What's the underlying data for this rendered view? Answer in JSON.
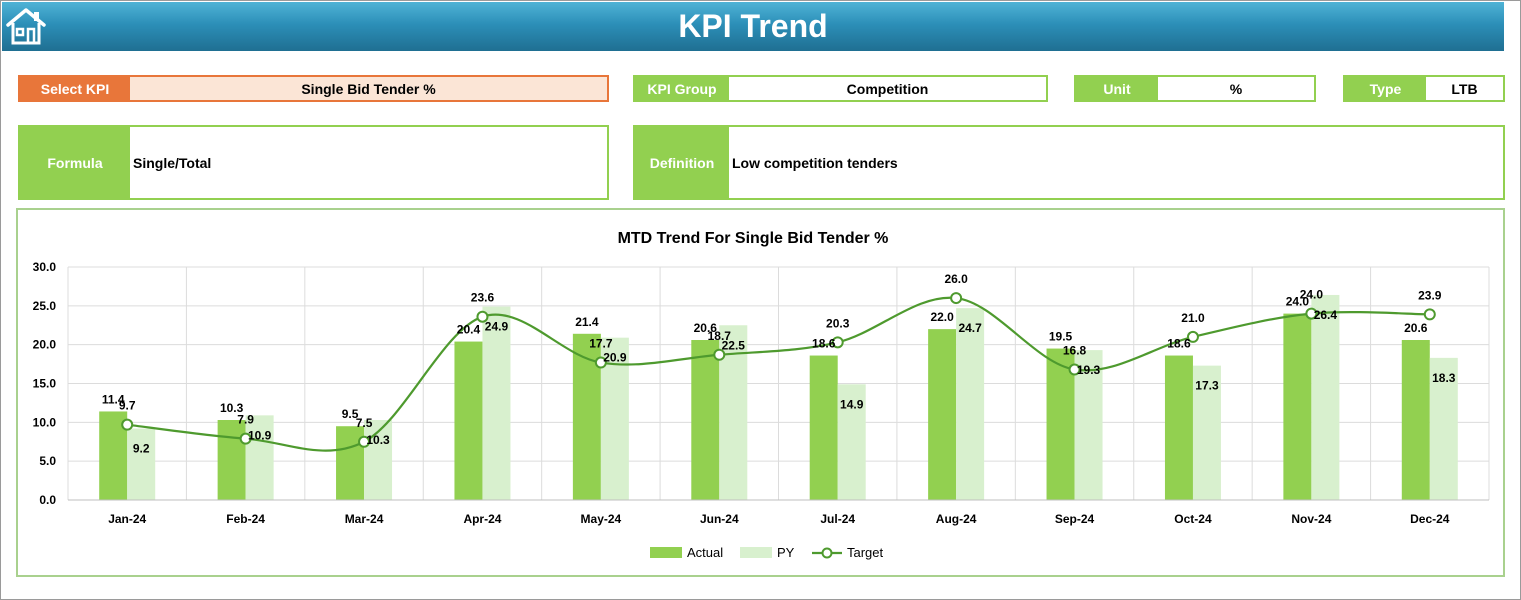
{
  "header": {
    "title": "KPI Trend"
  },
  "fields": {
    "select_kpi": {
      "label": "Select KPI",
      "value": "Single Bid Tender %"
    },
    "kpi_group": {
      "label": "KPI Group",
      "value": "Competition"
    },
    "unit": {
      "label": "Unit",
      "value": "%"
    },
    "type": {
      "label": "Type",
      "value": "LTB"
    },
    "formula": {
      "label": "Formula",
      "value": "Single/Total"
    },
    "definition": {
      "label": "Definition",
      "value": "Low competition tenders"
    }
  },
  "colors": {
    "header": "#2c8fb8",
    "label_green": "#92d050",
    "label_orange": "#e8763a",
    "actual": "#92d050",
    "py": "#d8f0ce",
    "target": "#4e9a2e"
  },
  "chart_data": {
    "type": "bar",
    "title": "MTD Trend For Single Bid Tender %",
    "categories": [
      "Jan-24",
      "Feb-24",
      "Mar-24",
      "Apr-24",
      "May-24",
      "Jun-24",
      "Jul-24",
      "Aug-24",
      "Sep-24",
      "Oct-24",
      "Nov-24",
      "Dec-24"
    ],
    "series": [
      {
        "name": "Actual",
        "type": "bar",
        "values": [
          11.4,
          10.3,
          9.5,
          20.4,
          21.4,
          20.6,
          18.6,
          22.0,
          19.5,
          18.6,
          24.0,
          20.6
        ]
      },
      {
        "name": "PY",
        "type": "bar",
        "values": [
          9.2,
          10.9,
          10.3,
          24.9,
          20.9,
          22.5,
          14.9,
          24.7,
          19.3,
          17.3,
          26.4,
          18.3
        ]
      },
      {
        "name": "Target",
        "type": "line",
        "values": [
          9.7,
          7.9,
          7.5,
          23.6,
          17.7,
          18.7,
          20.3,
          26.0,
          16.8,
          21.0,
          24.0,
          23.9
        ]
      }
    ],
    "y_ticks": [
      "0.0",
      "5.0",
      "10.0",
      "15.0",
      "20.0",
      "25.0",
      "30.0"
    ],
    "ylim": [
      0,
      30
    ],
    "grid": true,
    "legend": "bottom"
  }
}
